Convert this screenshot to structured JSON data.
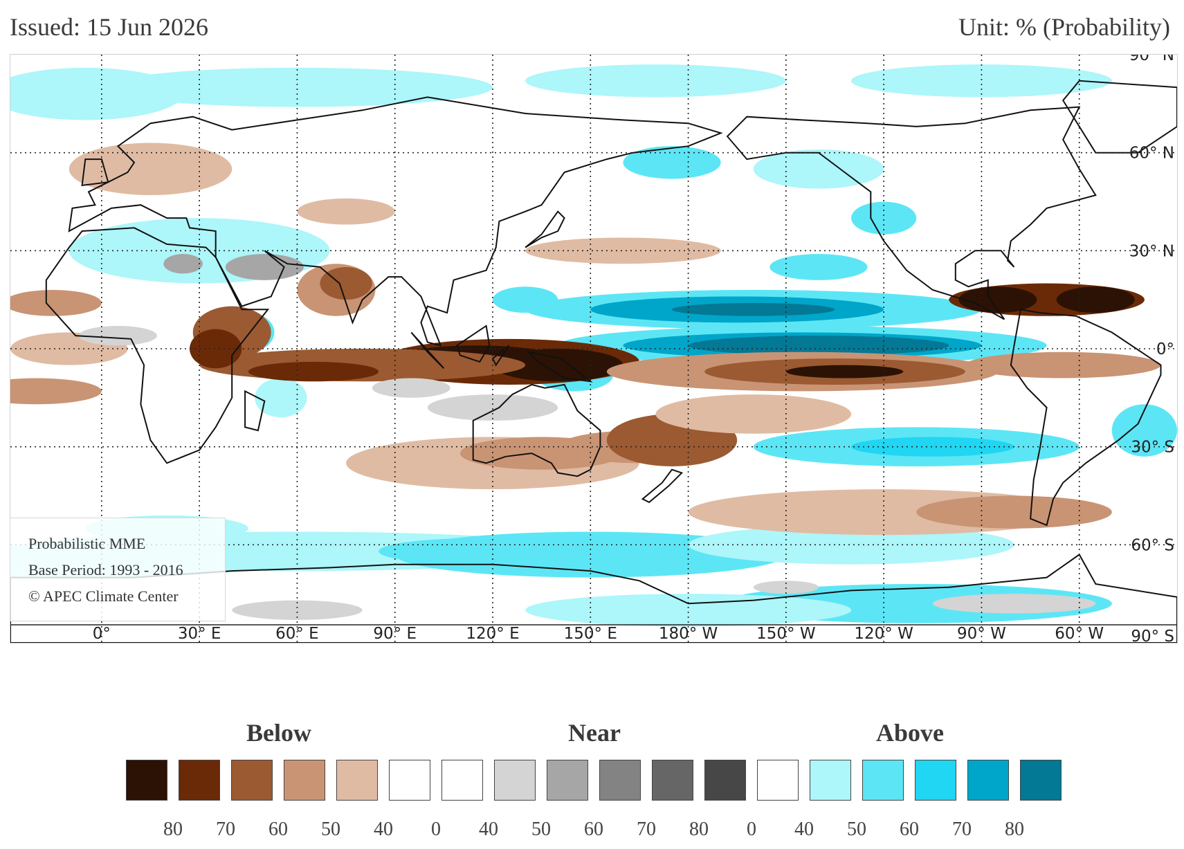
{
  "header": {
    "issued": "Issued: 15 Jun 2026",
    "unit": "Unit: % (Probability)"
  },
  "info_box": {
    "line1": "Probabilistic MME",
    "line2": "Base Period: 1993 - 2016",
    "line3": "© APEC Climate Center"
  },
  "map": {
    "lat_labels": [
      "90° N",
      "60° N",
      "30° N",
      "0°",
      "30° S",
      "60° S",
      "90° S"
    ],
    "lat_values": [
      90,
      60,
      30,
      0,
      -30,
      -60,
      -90
    ],
    "lon_labels": [
      "0°",
      "30° E",
      "60° E",
      "90° E",
      "120° E",
      "150° E",
      "180° W",
      "150° W",
      "120° W",
      "90° W",
      "60° W"
    ],
    "lon_values": [
      0,
      30,
      60,
      90,
      120,
      150,
      180,
      210,
      240,
      270,
      300
    ],
    "lon_range": [
      -28,
      330
    ],
    "lat_range": [
      -90,
      90
    ],
    "grid": "dotted"
  },
  "legend": {
    "categories": [
      {
        "label": "Below"
      },
      {
        "label": "Near"
      },
      {
        "label": "Above"
      }
    ],
    "colors": [
      "#2b1204",
      "#6b2a07",
      "#9b5a32",
      "#c99474",
      "#e0bba3",
      "#ffffff",
      "#ffffff",
      "#d4d4d4",
      "#a6a6a6",
      "#838383",
      "#666666",
      "#474747",
      "#ffffff",
      "#adf6fa",
      "#5ce6f5",
      "#20d6f2",
      "#00a6c9",
      "#037996"
    ],
    "ticks": [
      "80",
      "70",
      "60",
      "50",
      "40",
      "0",
      "40",
      "50",
      "60",
      "70",
      "80",
      "0",
      "40",
      "50",
      "60",
      "70",
      "80"
    ]
  }
}
